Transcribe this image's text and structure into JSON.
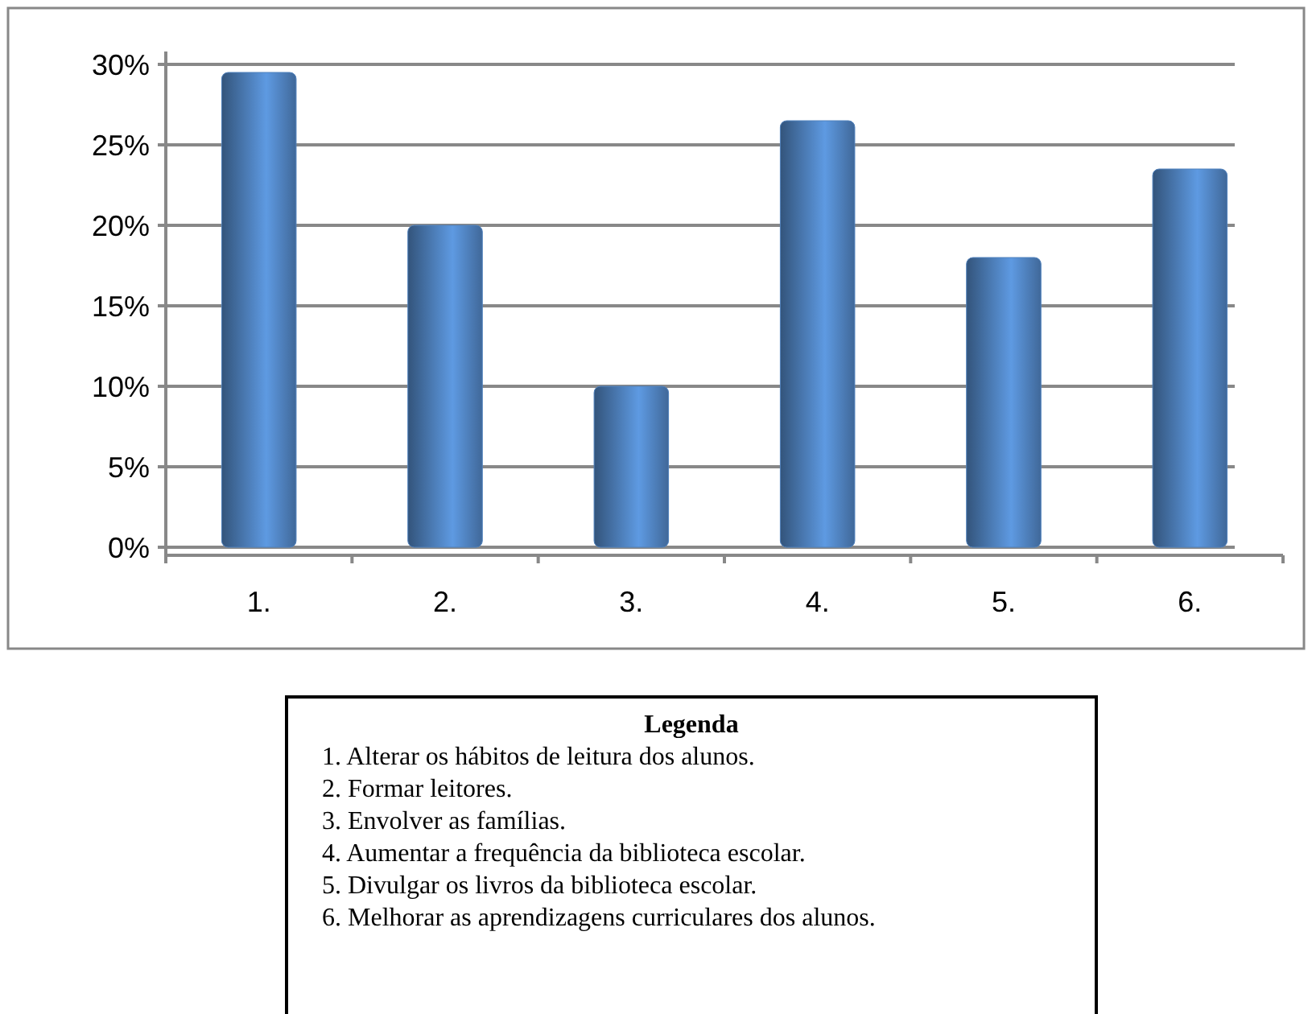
{
  "chart_data": {
    "type": "bar",
    "categories": [
      "1.",
      "2.",
      "3.",
      "4.",
      "5.",
      "6."
    ],
    "values": [
      29.5,
      20,
      10,
      26.5,
      18,
      23.5
    ],
    "color": "#4f81bd",
    "ylim": [
      0,
      30
    ],
    "yticks": [
      {
        "value": 0,
        "label": "0%"
      },
      {
        "value": 5,
        "label": "5%"
      },
      {
        "value": 10,
        "label": "10%"
      },
      {
        "value": 15,
        "label": "15%"
      },
      {
        "value": 20,
        "label": "20%"
      },
      {
        "value": 25,
        "label": "25%"
      },
      {
        "value": 30,
        "label": "30%"
      }
    ],
    "grid": "y",
    "legend_title": "Legenda",
    "annotations": [
      "1. Alterar os hábitos de leitura dos alunos.",
      "2. Formar leitores.",
      "3. Envolver as famílias.",
      "4. Aumentar a frequência da biblioteca escolar.",
      "5. Divulgar os livros da biblioteca escolar.",
      "6. Melhorar as aprendizagens curriculares dos alunos."
    ]
  }
}
